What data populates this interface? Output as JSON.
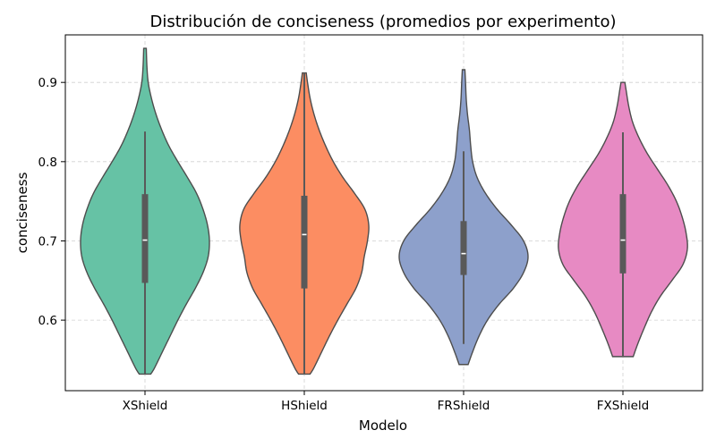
{
  "chart_data": {
    "type": "violin",
    "title": "Distribución de conciseness (promedios por experimento)",
    "xlabel": "Modelo",
    "ylabel": "conciseness",
    "ylim": [
      0.511,
      0.96
    ],
    "yticks": [
      0.6,
      0.7,
      0.8,
      0.9
    ],
    "ytick_labels": [
      "0.6",
      "0.7",
      "0.8",
      "0.9"
    ],
    "grid": true,
    "categories": [
      "XShield",
      "HShield",
      "FRShield",
      "FXShield"
    ],
    "series": [
      {
        "category": "XShield",
        "color": "#66c2a5",
        "min": 0.532,
        "q1": 0.647,
        "median": 0.701,
        "q3": 0.759,
        "max": 0.838,
        "kde_top": 0.943,
        "kde_bottom": 0.532,
        "profile": [
          [
            0.532,
            0.09
          ],
          [
            0.54,
            0.15
          ],
          [
            0.56,
            0.27
          ],
          [
            0.58,
            0.39
          ],
          [
            0.6,
            0.51
          ],
          [
            0.62,
            0.64
          ],
          [
            0.64,
            0.78
          ],
          [
            0.66,
            0.9
          ],
          [
            0.68,
            0.98
          ],
          [
            0.7,
            1.0
          ],
          [
            0.72,
            0.97
          ],
          [
            0.74,
            0.9
          ],
          [
            0.76,
            0.8
          ],
          [
            0.78,
            0.66
          ],
          [
            0.8,
            0.51
          ],
          [
            0.82,
            0.37
          ],
          [
            0.84,
            0.26
          ],
          [
            0.86,
            0.17
          ],
          [
            0.88,
            0.1
          ],
          [
            0.9,
            0.05
          ],
          [
            0.92,
            0.03
          ],
          [
            0.943,
            0.02
          ]
        ]
      },
      {
        "category": "HShield",
        "color": "#fc8d62",
        "min": 0.532,
        "q1": 0.64,
        "median": 0.708,
        "q3": 0.757,
        "max": 0.912,
        "kde_top": 0.912,
        "kde_bottom": 0.532,
        "profile": [
          [
            0.532,
            0.09
          ],
          [
            0.54,
            0.15
          ],
          [
            0.56,
            0.27
          ],
          [
            0.58,
            0.39
          ],
          [
            0.6,
            0.52
          ],
          [
            0.62,
            0.66
          ],
          [
            0.64,
            0.8
          ],
          [
            0.66,
            0.89
          ],
          [
            0.68,
            0.93
          ],
          [
            0.7,
            0.98
          ],
          [
            0.72,
            1.0
          ],
          [
            0.74,
            0.94
          ],
          [
            0.76,
            0.78
          ],
          [
            0.78,
            0.6
          ],
          [
            0.8,
            0.45
          ],
          [
            0.82,
            0.33
          ],
          [
            0.84,
            0.23
          ],
          [
            0.86,
            0.15
          ],
          [
            0.88,
            0.09
          ],
          [
            0.9,
            0.05
          ],
          [
            0.912,
            0.03
          ]
        ]
      },
      {
        "category": "FRShield",
        "color": "#8da0cb",
        "min": 0.57,
        "q1": 0.657,
        "median": 0.684,
        "q3": 0.725,
        "max": 0.813,
        "kde_top": 0.916,
        "kde_bottom": 0.544,
        "profile": [
          [
            0.544,
            0.07
          ],
          [
            0.56,
            0.14
          ],
          [
            0.58,
            0.24
          ],
          [
            0.6,
            0.37
          ],
          [
            0.62,
            0.55
          ],
          [
            0.64,
            0.77
          ],
          [
            0.66,
            0.93
          ],
          [
            0.68,
            1.0
          ],
          [
            0.7,
            0.93
          ],
          [
            0.72,
            0.74
          ],
          [
            0.74,
            0.52
          ],
          [
            0.76,
            0.34
          ],
          [
            0.78,
            0.21
          ],
          [
            0.8,
            0.14
          ],
          [
            0.82,
            0.11
          ],
          [
            0.84,
            0.09
          ],
          [
            0.86,
            0.06
          ],
          [
            0.88,
            0.04
          ],
          [
            0.9,
            0.03
          ],
          [
            0.916,
            0.02
          ]
        ]
      },
      {
        "category": "FXShield",
        "color": "#e78ac3",
        "min": 0.555,
        "q1": 0.659,
        "median": 0.701,
        "q3": 0.759,
        "max": 0.837,
        "kde_top": 0.9,
        "kde_bottom": 0.554,
        "profile": [
          [
            0.554,
            0.16
          ],
          [
            0.57,
            0.23
          ],
          [
            0.59,
            0.33
          ],
          [
            0.61,
            0.44
          ],
          [
            0.63,
            0.58
          ],
          [
            0.65,
            0.76
          ],
          [
            0.67,
            0.93
          ],
          [
            0.69,
            1.0
          ],
          [
            0.71,
            0.98
          ],
          [
            0.73,
            0.92
          ],
          [
            0.75,
            0.83
          ],
          [
            0.77,
            0.7
          ],
          [
            0.79,
            0.54
          ],
          [
            0.81,
            0.38
          ],
          [
            0.83,
            0.25
          ],
          [
            0.85,
            0.15
          ],
          [
            0.87,
            0.09
          ],
          [
            0.89,
            0.05
          ],
          [
            0.9,
            0.03
          ]
        ]
      }
    ]
  }
}
